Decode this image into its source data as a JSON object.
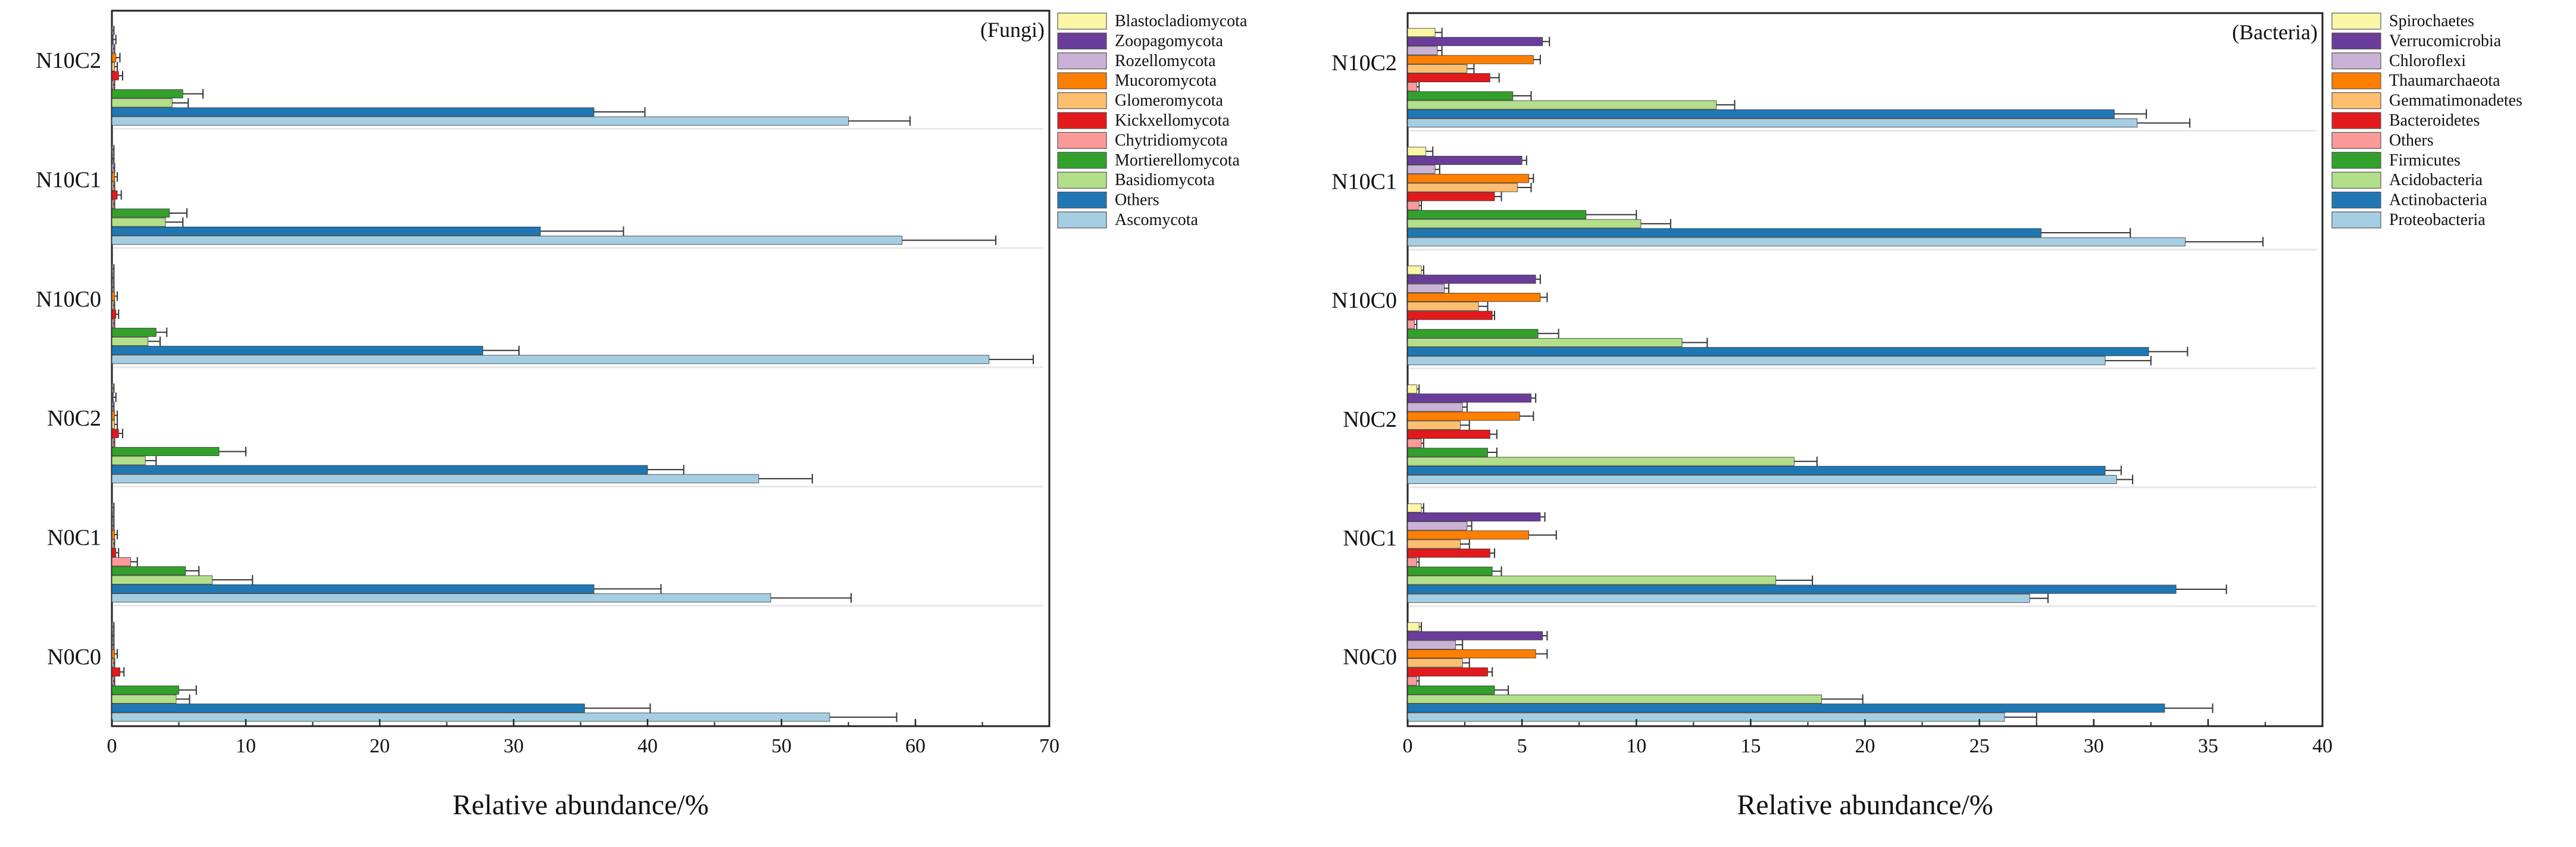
{
  "figure": {
    "x_axis_label": "Relative abundance/%"
  },
  "chart_data": [
    {
      "id": "fungi",
      "type": "bar",
      "orientation": "horizontal",
      "title": "(Fungi)",
      "xlabel": "Relative abundance/%",
      "ylabel": "",
      "xlim": [
        0,
        70
      ],
      "xticks": [
        0,
        10,
        20,
        30,
        40,
        50,
        60,
        70
      ],
      "categories": [
        "N10C2",
        "N10C1",
        "N10C0",
        "N0C2",
        "N0C1",
        "N0C0"
      ],
      "legend_position": "top-right",
      "series": [
        {
          "name": "Blastocladiomycota",
          "color": "#fbf6a6",
          "values": [
            0.05,
            0.05,
            0.05,
            0.05,
            0.05,
            0.05
          ],
          "errors": [
            0.1,
            0.1,
            0.1,
            0.1,
            0.1,
            0.1
          ]
        },
        {
          "name": "Zoopagomycota",
          "color": "#6a3d9a",
          "values": [
            0.1,
            0.05,
            0.05,
            0.1,
            0.05,
            0.05
          ],
          "errors": [
            0.2,
            0.1,
            0.1,
            0.2,
            0.1,
            0.1
          ]
        },
        {
          "name": "Rozellomycota",
          "color": "#cab2d6",
          "values": [
            0.1,
            0.1,
            0.05,
            0.05,
            0.05,
            0.05
          ],
          "errors": [
            0.1,
            0.1,
            0.1,
            0.1,
            0.1,
            0.1
          ]
        },
        {
          "name": "Mucoromycota",
          "color": "#ff7f00",
          "values": [
            0.3,
            0.2,
            0.2,
            0.2,
            0.2,
            0.2
          ],
          "errors": [
            0.3,
            0.2,
            0.2,
            0.2,
            0.2,
            0.2
          ]
        },
        {
          "name": "Glomeromycota",
          "color": "#fdbf6f",
          "values": [
            0.2,
            0.1,
            0.1,
            0.2,
            0.1,
            0.1
          ],
          "errors": [
            0.2,
            0.1,
            0.1,
            0.2,
            0.1,
            0.1
          ]
        },
        {
          "name": "Kickxellomycota",
          "color": "#e31a1c",
          "values": [
            0.5,
            0.4,
            0.3,
            0.5,
            0.3,
            0.6
          ],
          "errors": [
            0.3,
            0.3,
            0.2,
            0.3,
            0.2,
            0.3
          ]
        },
        {
          "name": "Chytridiomycota",
          "color": "#fb9a99",
          "values": [
            0.1,
            0.1,
            0.1,
            0.1,
            1.4,
            0.1
          ],
          "errors": [
            0.1,
            0.1,
            0.1,
            0.1,
            0.5,
            0.1
          ]
        },
        {
          "name": "Mortierellomycota",
          "color": "#33a02c",
          "values": [
            5.3,
            4.3,
            3.3,
            8.0,
            5.5,
            5.0
          ],
          "errors": [
            1.5,
            1.3,
            0.8,
            2.0,
            1.0,
            1.3
          ]
        },
        {
          "name": "Basidiomycota",
          "color": "#b2df8a",
          "values": [
            4.5,
            4.0,
            2.7,
            2.5,
            7.5,
            4.8
          ],
          "errors": [
            1.2,
            1.3,
            0.9,
            0.8,
            3.0,
            1.0
          ]
        },
        {
          "name": "Others",
          "color": "#1f78b4",
          "values": [
            36.0,
            32.0,
            27.7,
            40.0,
            36.0,
            35.3
          ],
          "errors": [
            3.8,
            6.2,
            2.7,
            2.7,
            5.0,
            4.9
          ]
        },
        {
          "name": "Ascomycota",
          "color": "#a6cee3",
          "values": [
            55.0,
            59.0,
            65.5,
            48.3,
            49.2,
            53.6
          ],
          "errors": [
            4.6,
            7.0,
            3.3,
            4.0,
            6.0,
            5.0
          ]
        }
      ]
    },
    {
      "id": "bacteria",
      "type": "bar",
      "orientation": "horizontal",
      "title": "(Bacteria)",
      "xlabel": "Relative abundance/%",
      "ylabel": "",
      "xlim": [
        0,
        40
      ],
      "xticks": [
        0,
        5,
        10,
        15,
        20,
        25,
        30,
        35,
        40
      ],
      "categories": [
        "N10C2",
        "N10C1",
        "N10C0",
        "N0C2",
        "N0C1",
        "N0C0"
      ],
      "legend_position": "top-right",
      "series": [
        {
          "name": "Spirochaetes",
          "color": "#fbf6a6",
          "values": [
            1.2,
            0.8,
            0.6,
            0.4,
            0.6,
            0.5
          ],
          "errors": [
            0.3,
            0.3,
            0.1,
            0.1,
            0.1,
            0.1
          ]
        },
        {
          "name": "Verrucomicrobia",
          "color": "#6a3d9a",
          "values": [
            5.9,
            5.0,
            5.6,
            5.4,
            5.8,
            5.9
          ],
          "errors": [
            0.3,
            0.2,
            0.2,
            0.2,
            0.2,
            0.2
          ]
        },
        {
          "name": "Chloroflexi",
          "color": "#cab2d6",
          "values": [
            1.3,
            1.2,
            1.6,
            2.4,
            2.6,
            2.1
          ],
          "errors": [
            0.2,
            0.2,
            0.2,
            0.2,
            0.2,
            0.3
          ]
        },
        {
          "name": "Thaumarchaeota",
          "color": "#ff7f00",
          "values": [
            5.5,
            5.3,
            5.8,
            4.9,
            5.3,
            5.6
          ],
          "errors": [
            0.3,
            0.2,
            0.3,
            0.6,
            1.2,
            0.5
          ]
        },
        {
          "name": "Gemmatimonadetes",
          "color": "#fdbf6f",
          "values": [
            2.6,
            4.8,
            3.1,
            2.3,
            2.3,
            2.4
          ],
          "errors": [
            0.3,
            0.6,
            0.4,
            0.4,
            0.4,
            0.3
          ]
        },
        {
          "name": "Bacteroidetes",
          "color": "#e31a1c",
          "values": [
            3.6,
            3.8,
            3.7,
            3.6,
            3.6,
            3.5
          ],
          "errors": [
            0.4,
            0.3,
            0.1,
            0.3,
            0.2,
            0.2
          ]
        },
        {
          "name": "Others",
          "color": "#fb9a99",
          "values": [
            0.4,
            0.5,
            0.3,
            0.6,
            0.4,
            0.4
          ],
          "errors": [
            0.1,
            0.1,
            0.1,
            0.1,
            0.1,
            0.1
          ]
        },
        {
          "name": "Firmicutes",
          "color": "#33a02c",
          "values": [
            4.6,
            7.8,
            5.7,
            3.5,
            3.7,
            3.8
          ],
          "errors": [
            0.8,
            2.2,
            0.9,
            0.4,
            0.4,
            0.6
          ]
        },
        {
          "name": "Acidobacteria",
          "color": "#b2df8a",
          "values": [
            13.5,
            10.2,
            12.0,
            16.9,
            16.1,
            18.1
          ],
          "errors": [
            0.8,
            1.3,
            1.1,
            1.0,
            1.6,
            1.8
          ]
        },
        {
          "name": "Actinobacteria",
          "color": "#1f78b4",
          "values": [
            30.9,
            27.7,
            32.4,
            30.5,
            33.6,
            33.1
          ],
          "errors": [
            1.4,
            3.9,
            1.7,
            0.7,
            2.2,
            2.1
          ]
        },
        {
          "name": "Proteobacteria",
          "color": "#a6cee3",
          "values": [
            31.9,
            34.0,
            30.5,
            31.0,
            27.2,
            26.1
          ],
          "errors": [
            2.3,
            3.4,
            2.0,
            0.7,
            0.8,
            1.4
          ]
        }
      ]
    }
  ]
}
